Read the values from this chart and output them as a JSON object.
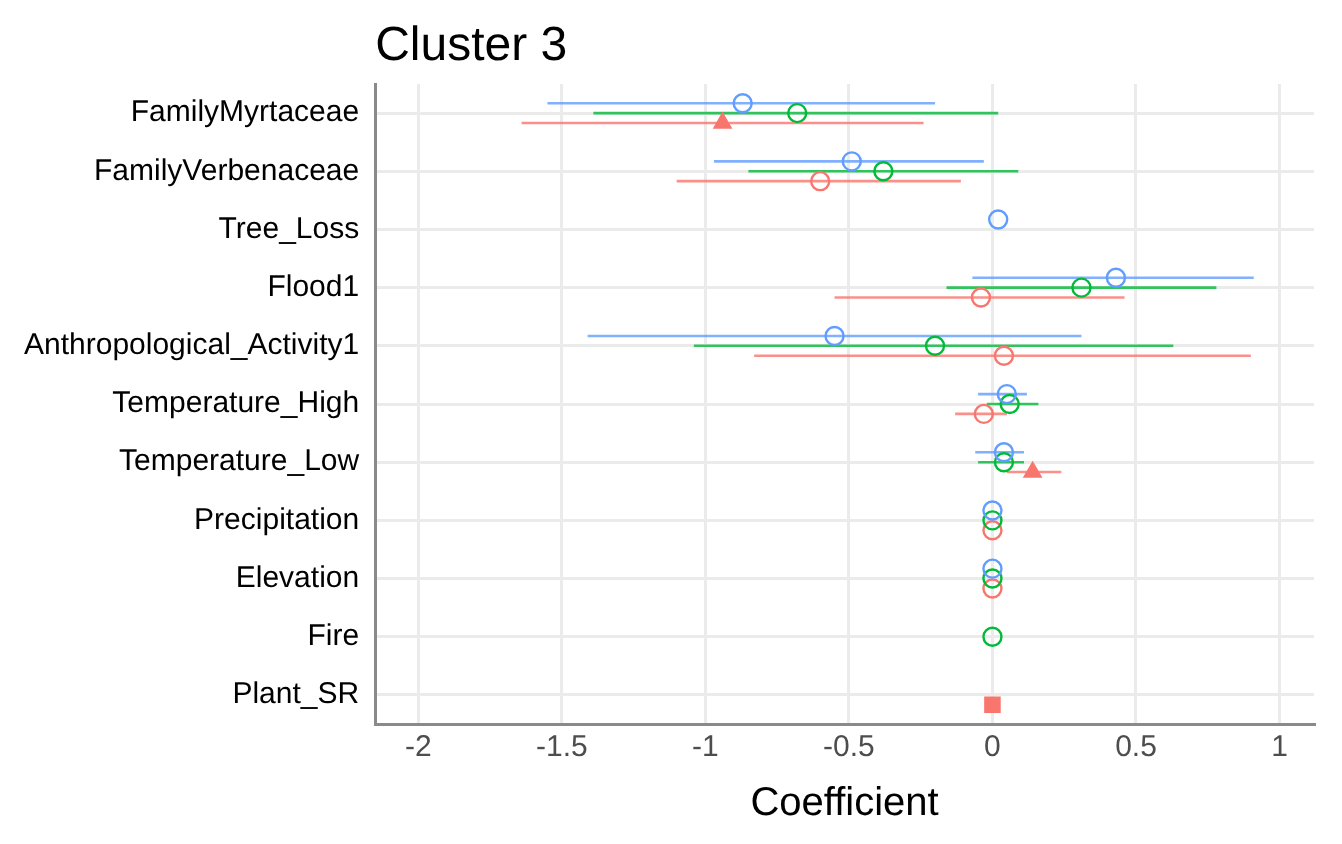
{
  "chart_data": {
    "type": "scatter",
    "orientation": "horizontal",
    "title": "Cluster 3",
    "xlabel": "Coefficient",
    "categories": [
      "FamilyMyrtaceae",
      "FamilyVerbenaceae",
      "Tree_Loss",
      "Flood1",
      "Anthropological_Activity1",
      "Temperature_High",
      "Temperature_Low",
      "Precipitation",
      "Elevation",
      "Fire",
      "Plant_SR"
    ],
    "xlim": [
      -2.15,
      1.12
    ],
    "xticks": [
      -2,
      -1.5,
      -1,
      -0.5,
      0,
      0.5,
      1
    ],
    "grid": true,
    "legend": false,
    "series": [
      {
        "color": "#619cff",
        "marker": "circle",
        "values": [
          -0.87,
          -0.49,
          0.02,
          0.43,
          -0.55,
          0.05,
          0.04,
          0,
          0,
          null,
          null
        ],
        "errors": [
          [
            -1.55,
            -0.2
          ],
          [
            -0.97,
            -0.03
          ],
          null,
          [
            -0.07,
            0.91
          ],
          [
            -1.41,
            0.31
          ],
          [
            -0.05,
            0.12
          ],
          [
            -0.06,
            0.11
          ],
          null,
          null,
          null,
          null
        ]
      },
      {
        "color": "#00ba38",
        "marker": "circle",
        "values": [
          -0.68,
          -0.38,
          null,
          0.31,
          -0.2,
          0.06,
          0.04,
          0,
          0,
          0,
          null
        ],
        "errors": [
          [
            -1.39,
            0.02
          ],
          [
            -0.85,
            0.09
          ],
          null,
          [
            -0.16,
            0.78
          ],
          [
            -1.04,
            0.63
          ],
          [
            -0.02,
            0.16
          ],
          [
            -0.05,
            0.11
          ],
          null,
          null,
          null,
          null
        ]
      },
      {
        "color": "#f8766d",
        "marker": "circle",
        "values": [
          null,
          -0.6,
          null,
          -0.04,
          0.04,
          -0.03,
          null,
          0,
          0,
          null,
          null
        ],
        "errors": [
          null,
          [
            -1.1,
            -0.11
          ],
          null,
          [
            -0.55,
            0.46
          ],
          [
            -0.83,
            0.9
          ],
          [
            -0.13,
            0.05
          ],
          null,
          null,
          null,
          null,
          null
        ]
      },
      {
        "color": "#f8766d",
        "marker": "triangle",
        "values": [
          -0.94,
          null,
          null,
          null,
          null,
          null,
          0.14,
          null,
          null,
          null,
          null
        ],
        "errors": [
          [
            -1.64,
            -0.24
          ],
          null,
          null,
          null,
          null,
          null,
          [
            0.05,
            0.24
          ],
          null,
          null,
          null,
          null
        ]
      },
      {
        "color": "#f8766d",
        "marker": "square",
        "values": [
          null,
          null,
          null,
          null,
          null,
          null,
          null,
          null,
          null,
          null,
          0
        ],
        "errors": [
          null,
          null,
          null,
          null,
          null,
          null,
          null,
          null,
          null,
          null,
          null
        ]
      }
    ]
  }
}
